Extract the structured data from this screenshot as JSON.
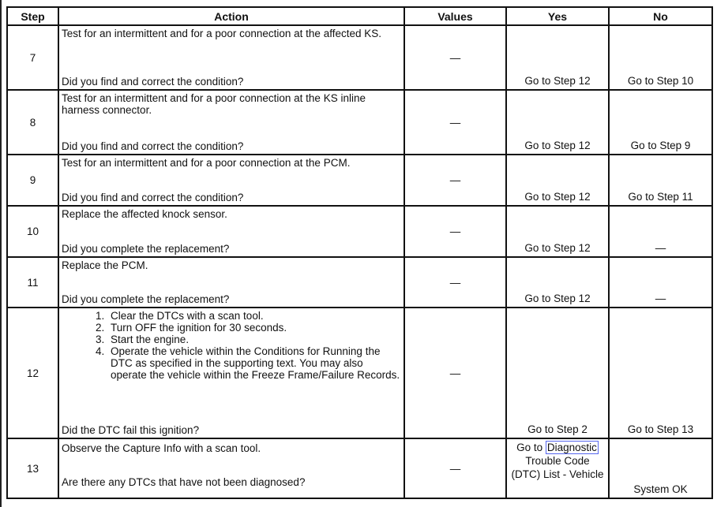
{
  "headers": {
    "step": "Step",
    "action": "Action",
    "values": "Values",
    "yes": "Yes",
    "no": "No"
  },
  "rows": [
    {
      "step": "7",
      "action": "Test for an intermittent and for a poor connection at the affected KS.",
      "question": "Did you find and correct the condition?",
      "values": "—",
      "yes": "Go to Step 12",
      "no": "Go to Step 10"
    },
    {
      "step": "8",
      "action": "Test for an intermittent and for a poor connection at the KS inline harness connector.",
      "question": "Did you find and correct the condition?",
      "values": "—",
      "yes": "Go to Step 12",
      "no": "Go to Step 9"
    },
    {
      "step": "9",
      "action": "Test for an intermittent and for a poor connection at the PCM.",
      "question": "Did you find and correct the condition?",
      "values": "—",
      "yes": "Go to Step 12",
      "no": "Go to Step 11"
    },
    {
      "step": "10",
      "action": "Replace the affected knock sensor.",
      "question": "Did you complete the replacement?",
      "values": "—",
      "yes": "Go to Step 12",
      "no": "—"
    },
    {
      "step": "11",
      "action": "Replace the PCM.",
      "question": "Did you complete the replacement?",
      "values": "—",
      "yes": "Go to Step 12",
      "no": "—"
    },
    {
      "step": "12",
      "list": [
        "Clear the DTCs with a scan tool.",
        "Turn OFF the ignition for 30 seconds.",
        "Start the engine.",
        "Operate the vehicle within the Conditions for Running the DTC as specified in the supporting text. You may also operate the vehicle within the Freeze Frame/Failure Records."
      ],
      "question": "Did the DTC fail this ignition?",
      "values": "—",
      "yes": "Go to Step 2",
      "no": "Go to Step 13"
    },
    {
      "step": "13",
      "action": "Observe the Capture Info with a scan tool.",
      "question": "Are there any DTCs that have not been diagnosed?",
      "values": "—",
      "yes_prefix": "Go to ",
      "yes_link": "Diagnostic",
      "yes_suffix": "Trouble Code (DTC) List - Vehicle",
      "no": "System OK"
    }
  ]
}
